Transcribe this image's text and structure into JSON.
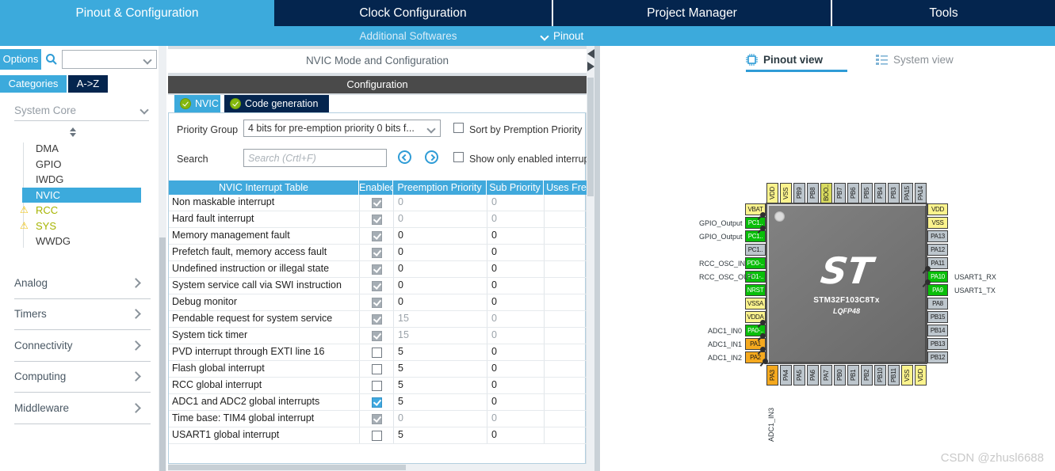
{
  "colors": {
    "accent": "#3CAADC",
    "navy": "#04254E",
    "table_header": "#41A9DC",
    "config_bar": "#4A4A4A",
    "warning": "#EDC10A",
    "module_warn_text": "#A6B400",
    "pin_power": "#FBF38D",
    "pin_boot": "#D8DA5F",
    "pin_active": "#09BE09",
    "pin_alt": "#F5A91E",
    "pin_default": "#BDC6CD"
  },
  "topnav": {
    "tabs": [
      {
        "label": "Pinout & Configuration",
        "active": true
      },
      {
        "label": "Clock Configuration",
        "active": false
      },
      {
        "label": "Project Manager",
        "active": false
      },
      {
        "label": "Tools",
        "active": false
      }
    ]
  },
  "subnav": {
    "additional_softwares": "Additional Softwares",
    "pinout": "Pinout"
  },
  "sidebar": {
    "options_label": "Options",
    "search_value": "",
    "filter_tabs": [
      {
        "label": "Categories",
        "active": true
      },
      {
        "label": "A->Z",
        "active": false
      }
    ],
    "system_core": {
      "label": "System Core",
      "items": [
        {
          "label": "DMA"
        },
        {
          "label": "GPIO"
        },
        {
          "label": "IWDG"
        },
        {
          "label": "NVIC",
          "selected": true
        },
        {
          "label": "RCC",
          "warning": true
        },
        {
          "label": "SYS",
          "warning": true
        },
        {
          "label": "WWDG"
        }
      ]
    },
    "groups": [
      {
        "label": "Analog"
      },
      {
        "label": "Timers"
      },
      {
        "label": "Connectivity"
      },
      {
        "label": "Computing"
      },
      {
        "label": "Middleware"
      }
    ]
  },
  "config_panel": {
    "title": "NVIC Mode and Configuration",
    "section": "Configuration",
    "tabs": [
      {
        "label": "NVIC",
        "active": true
      },
      {
        "label": "Code generation",
        "active": false
      }
    ],
    "priority_group": {
      "label": "Priority Group",
      "value": "4 bits for pre-emption priority 0 bits f..."
    },
    "sort_checkbox": "Sort by Premption Priority",
    "search": {
      "label": "Search",
      "placeholder": "Search (Crtl+F)"
    },
    "show_only_checkbox": "Show only enabled interrup",
    "table": {
      "headers": [
        "NVIC Interrupt Table",
        "Enabled",
        "Preemption Priority",
        "Sub Priority",
        "Uses Fre"
      ],
      "rows": [
        {
          "name": "Non maskable interrupt",
          "checked": true,
          "locked": true,
          "preemption": "0",
          "sub": "0",
          "dim": true
        },
        {
          "name": "Hard fault interrupt",
          "checked": true,
          "locked": true,
          "preemption": "0",
          "sub": "0",
          "dim": true
        },
        {
          "name": "Memory management fault",
          "checked": true,
          "locked": true,
          "preemption": "0",
          "sub": "0",
          "dim": false
        },
        {
          "name": "Prefetch fault, memory access fault",
          "checked": true,
          "locked": true,
          "preemption": "0",
          "sub": "0",
          "dim": false
        },
        {
          "name": "Undefined instruction or illegal state",
          "checked": true,
          "locked": true,
          "preemption": "0",
          "sub": "0",
          "dim": false
        },
        {
          "name": "System service call via SWI instruction",
          "checked": true,
          "locked": true,
          "preemption": "0",
          "sub": "0",
          "dim": false
        },
        {
          "name": "Debug monitor",
          "checked": true,
          "locked": true,
          "preemption": "0",
          "sub": "0",
          "dim": false
        },
        {
          "name": "Pendable request for system service",
          "checked": true,
          "locked": true,
          "preemption": "15",
          "sub": "0",
          "dim": true
        },
        {
          "name": "System tick timer",
          "checked": true,
          "locked": true,
          "preemption": "15",
          "sub": "0",
          "dim": true
        },
        {
          "name": "PVD interrupt through EXTI line 16",
          "checked": false,
          "locked": false,
          "preemption": "5",
          "sub": "0",
          "dim": false
        },
        {
          "name": "Flash global interrupt",
          "checked": false,
          "locked": false,
          "preemption": "5",
          "sub": "0",
          "dim": false
        },
        {
          "name": "RCC global interrupt",
          "checked": false,
          "locked": false,
          "preemption": "5",
          "sub": "0",
          "dim": false
        },
        {
          "name": "ADC1 and ADC2 global interrupts",
          "checked": true,
          "locked": false,
          "preemption": "5",
          "sub": "0",
          "dim": false
        },
        {
          "name": "Time base: TIM4 global interrupt",
          "checked": true,
          "locked": true,
          "preemption": "0",
          "sub": "0",
          "dim": true
        },
        {
          "name": "USART1 global interrupt",
          "checked": false,
          "locked": false,
          "preemption": "5",
          "sub": "0",
          "dim": false
        }
      ]
    }
  },
  "pinout_panel": {
    "tabs": [
      {
        "label": "Pinout view",
        "active": true
      },
      {
        "label": "System view",
        "active": false
      }
    ],
    "chip": {
      "logo": "ST",
      "part": "STM32F103C8Tx",
      "package": "LQFP48",
      "top_pins": [
        {
          "name": "VDD",
          "type": "power"
        },
        {
          "name": "VSS",
          "type": "power"
        },
        {
          "name": "PB9",
          "type": "default"
        },
        {
          "name": "PB8",
          "type": "default"
        },
        {
          "name": "BOO..",
          "type": "boot"
        },
        {
          "name": "PB7",
          "type": "default"
        },
        {
          "name": "PB6",
          "type": "default"
        },
        {
          "name": "PB5",
          "type": "default"
        },
        {
          "name": "PB4",
          "type": "default"
        },
        {
          "name": "PB3",
          "type": "default"
        },
        {
          "name": "PA15",
          "type": "default"
        },
        {
          "name": "PA14",
          "type": "default"
        }
      ],
      "left_pins": [
        {
          "name": "VBAT",
          "type": "power"
        },
        {
          "name": "PC1..",
          "type": "active",
          "label": "GPIO_Output",
          "pinned": true
        },
        {
          "name": "PC1..",
          "type": "active",
          "label": "GPIO_Output",
          "pinned": true
        },
        {
          "name": "PC1..",
          "type": "default"
        },
        {
          "name": "PD0-..",
          "type": "active",
          "label": "RCC_OSC_IN"
        },
        {
          "name": "PD1-..",
          "type": "active",
          "label": "RCC_OSC_OUT"
        },
        {
          "name": "NRST",
          "type": "active"
        },
        {
          "name": "VSSA",
          "type": "power"
        },
        {
          "name": "VDDA",
          "type": "power"
        },
        {
          "name": "PA0-..",
          "type": "active",
          "label": "ADC1_IN0",
          "pinned": true
        },
        {
          "name": "PA1",
          "type": "alt",
          "label": "ADC1_IN1",
          "pinned": true
        },
        {
          "name": "PA2",
          "type": "alt",
          "label": "ADC1_IN2",
          "pinned": true
        }
      ],
      "right_pins": [
        {
          "name": "VDD",
          "type": "power"
        },
        {
          "name": "VSS",
          "type": "power"
        },
        {
          "name": "PA13",
          "type": "default"
        },
        {
          "name": "PA12",
          "type": "default"
        },
        {
          "name": "PA11",
          "type": "default"
        },
        {
          "name": "PA10",
          "type": "active",
          "label": "USART1_RX",
          "pinned": true
        },
        {
          "name": "PA9",
          "type": "active",
          "label": "USART1_TX",
          "pinned": true
        },
        {
          "name": "PA8",
          "type": "default"
        },
        {
          "name": "PB15",
          "type": "default"
        },
        {
          "name": "PB14",
          "type": "default"
        },
        {
          "name": "PB13",
          "type": "default"
        },
        {
          "name": "PB12",
          "type": "default"
        }
      ],
      "bottom_pins": [
        {
          "name": "PA3",
          "type": "alt",
          "label": "ADC1_IN3",
          "pinned": true
        },
        {
          "name": "PA4",
          "type": "default"
        },
        {
          "name": "PA5",
          "type": "default"
        },
        {
          "name": "PA6",
          "type": "default"
        },
        {
          "name": "PA7",
          "type": "default"
        },
        {
          "name": "PB0",
          "type": "default"
        },
        {
          "name": "PB1",
          "type": "default"
        },
        {
          "name": "PB2",
          "type": "default"
        },
        {
          "name": "PB10",
          "type": "default"
        },
        {
          "name": "PB11",
          "type": "default"
        },
        {
          "name": "VSS",
          "type": "power"
        },
        {
          "name": "VDD",
          "type": "power"
        }
      ]
    },
    "watermark": "CSDN @zhusl6688"
  }
}
